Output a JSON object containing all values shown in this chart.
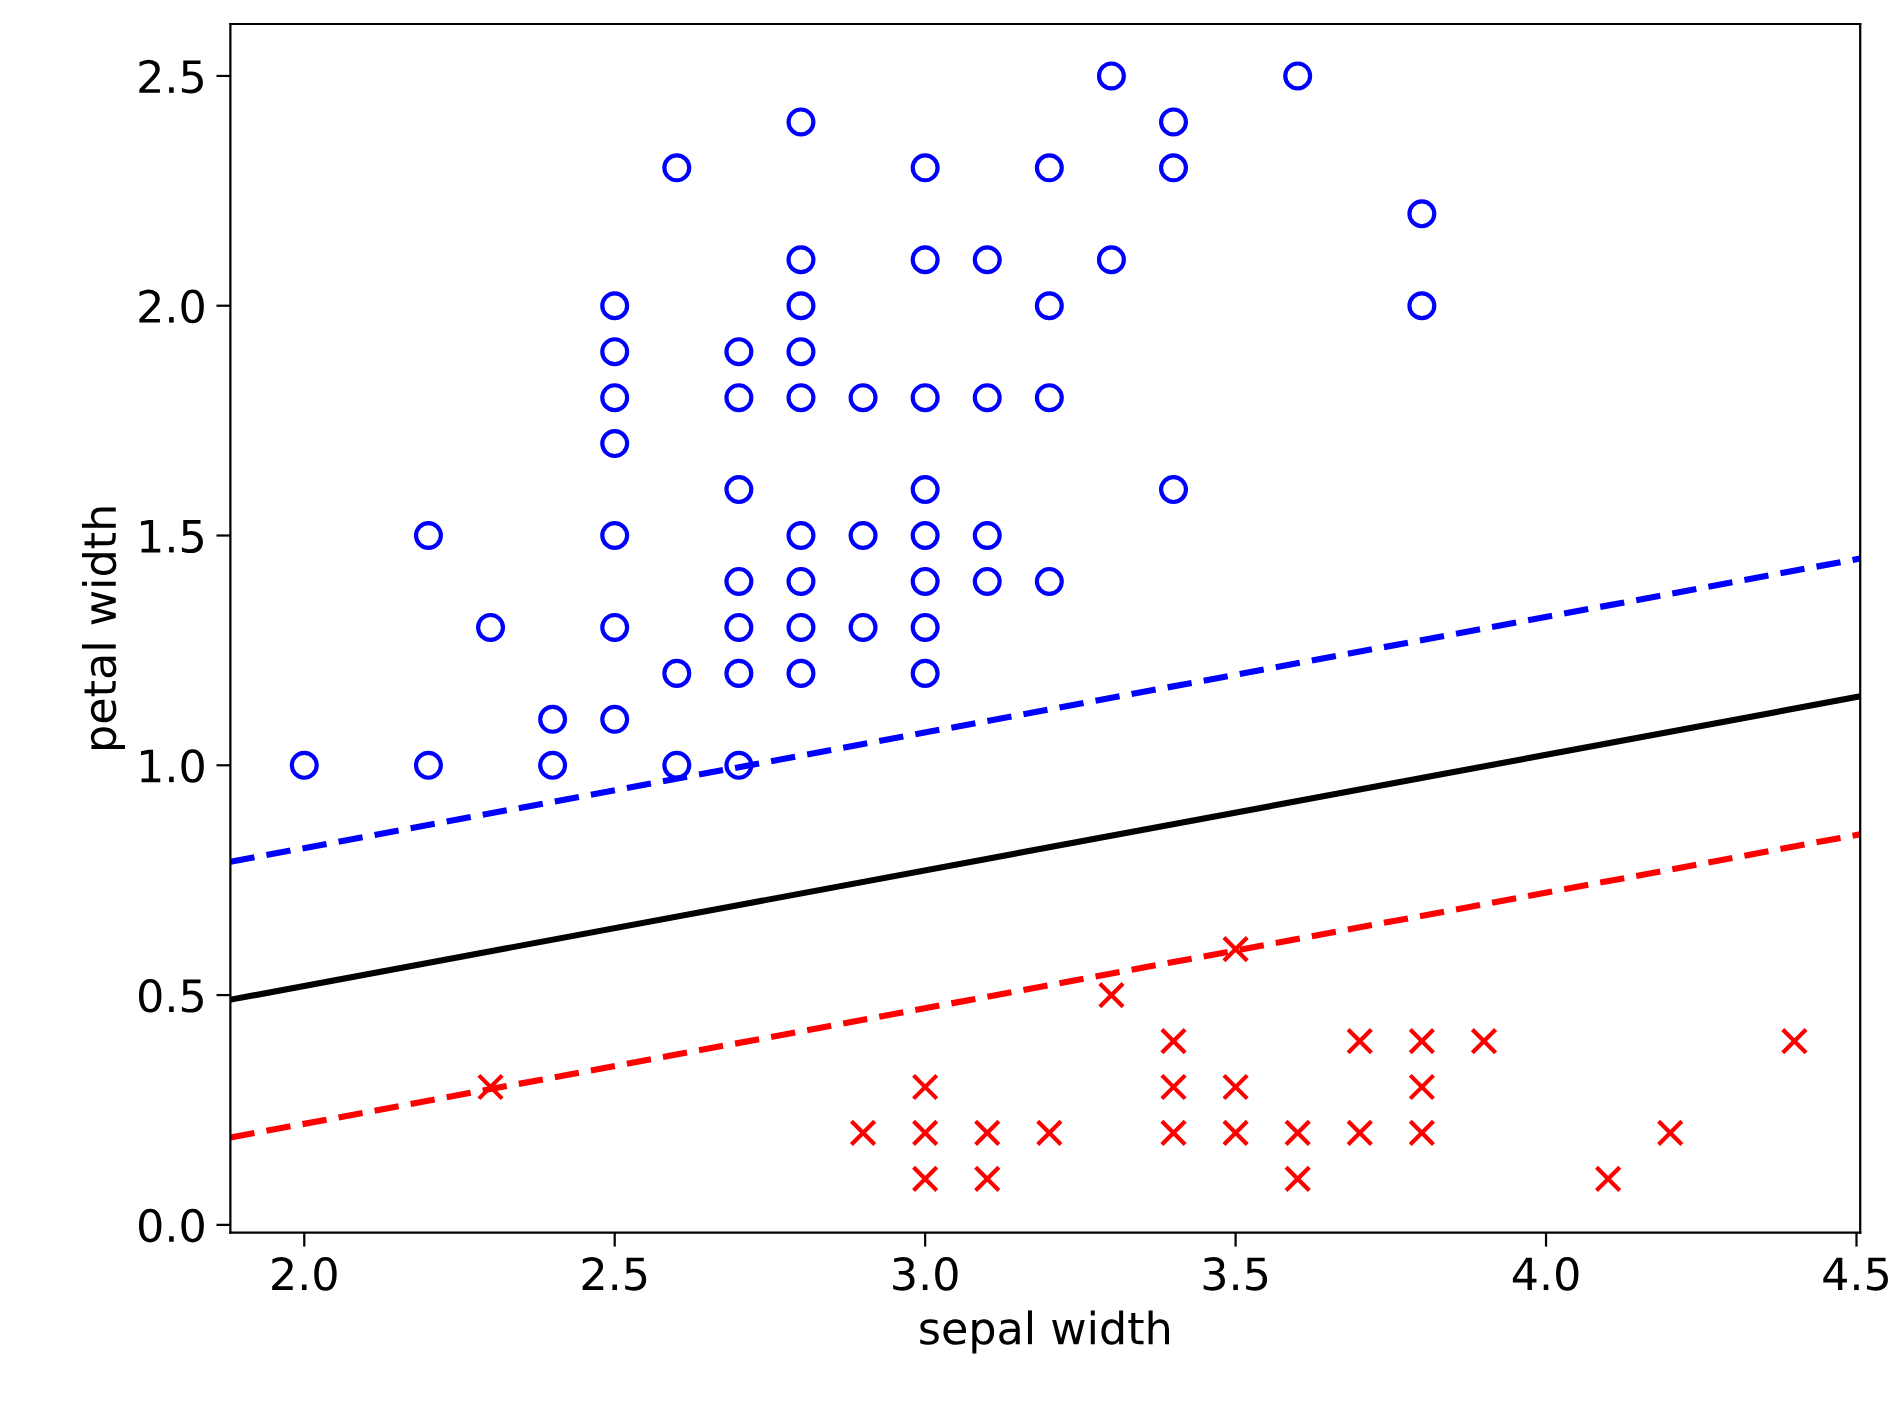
{
  "chart_data": {
    "type": "scatter",
    "xlabel": "sepal width",
    "ylabel": "petal width",
    "xlim": [
      1.881,
      4.506
    ],
    "ylim": [
      -0.017,
      2.613
    ],
    "xticks": [
      {
        "value": 2,
        "label": "2.0"
      },
      {
        "value": 2.5,
        "label": "2.5"
      },
      {
        "value": 3,
        "label": "3.0"
      },
      {
        "value": 3.5,
        "label": "3.5"
      },
      {
        "value": 4,
        "label": "4.0"
      },
      {
        "value": 4.5,
        "label": "4.5"
      }
    ],
    "yticks": [
      {
        "value": 0,
        "label": "0.0"
      },
      {
        "value": 0.5,
        "label": "0.5"
      },
      {
        "value": 1,
        "label": "1.0"
      },
      {
        "value": 1.5,
        "label": "1.5"
      },
      {
        "value": 2,
        "label": "2.0"
      },
      {
        "value": 2.5,
        "label": "2.5"
      }
    ],
    "grid": false,
    "series": [
      {
        "marker": "circle",
        "color": "#0000ff",
        "x": [
          2.0,
          2.2,
          2.2,
          2.3,
          2.4,
          2.4,
          2.5,
          2.5,
          2.5,
          2.5,
          2.5,
          2.5,
          2.5,
          2.6,
          2.6,
          2.6,
          2.7,
          2.7,
          2.7,
          2.7,
          2.7,
          2.7,
          2.7,
          2.8,
          2.8,
          2.8,
          2.8,
          2.8,
          2.8,
          2.8,
          2.8,
          2.8,
          2.9,
          2.9,
          2.9,
          3.0,
          3.0,
          3.0,
          3.0,
          3.0,
          3.0,
          3.0,
          3.0,
          3.1,
          3.1,
          3.1,
          3.1,
          3.2,
          3.2,
          3.2,
          3.2,
          3.3,
          3.3,
          3.4,
          3.4,
          3.4,
          3.6,
          3.8,
          3.8
        ],
        "values": [
          1.0,
          1.5,
          1.0,
          1.3,
          1.1,
          1.0,
          2.0,
          1.9,
          1.8,
          1.7,
          1.5,
          1.3,
          1.1,
          2.3,
          1.2,
          1.0,
          1.9,
          1.8,
          1.6,
          1.4,
          1.3,
          1.2,
          1.0,
          2.4,
          2.1,
          2.0,
          1.9,
          1.8,
          1.5,
          1.4,
          1.3,
          1.2,
          1.8,
          1.5,
          1.3,
          2.3,
          2.1,
          1.8,
          1.6,
          1.5,
          1.4,
          1.3,
          1.2,
          2.1,
          1.8,
          1.5,
          1.4,
          2.3,
          2.0,
          1.8,
          1.4,
          2.5,
          2.1,
          2.4,
          2.3,
          1.6,
          2.5,
          2.2,
          2.0
        ]
      },
      {
        "marker": "cross",
        "color": "#ff0000",
        "x": [
          2.3,
          2.9,
          3.0,
          3.0,
          3.0,
          3.1,
          3.1,
          3.2,
          3.3,
          3.4,
          3.4,
          3.4,
          3.5,
          3.5,
          3.5,
          3.6,
          3.6,
          3.7,
          3.7,
          3.8,
          3.8,
          3.8,
          3.9,
          4.1,
          4.2,
          4.4
        ],
        "values": [
          0.3,
          0.2,
          0.3,
          0.2,
          0.1,
          0.2,
          0.1,
          0.2,
          0.5,
          0.4,
          0.3,
          0.2,
          0.6,
          0.3,
          0.2,
          0.2,
          0.1,
          0.4,
          0.2,
          0.4,
          0.3,
          0.2,
          0.4,
          0.1,
          0.2,
          0.4
        ]
      },
      {
        "type": "line",
        "line_style": "solid",
        "color": "#000000",
        "x": [
          1.881,
          4.506
        ],
        "values": [
          0.49,
          1.15
        ]
      },
      {
        "type": "line",
        "line_style": "dashed",
        "color": "#0000ff",
        "x": [
          1.881,
          4.506
        ],
        "values": [
          0.79,
          1.45
        ]
      },
      {
        "type": "line",
        "line_style": "dashed",
        "color": "#ff0000",
        "x": [
          1.881,
          4.506
        ],
        "values": [
          0.19,
          0.85
        ]
      }
    ]
  }
}
